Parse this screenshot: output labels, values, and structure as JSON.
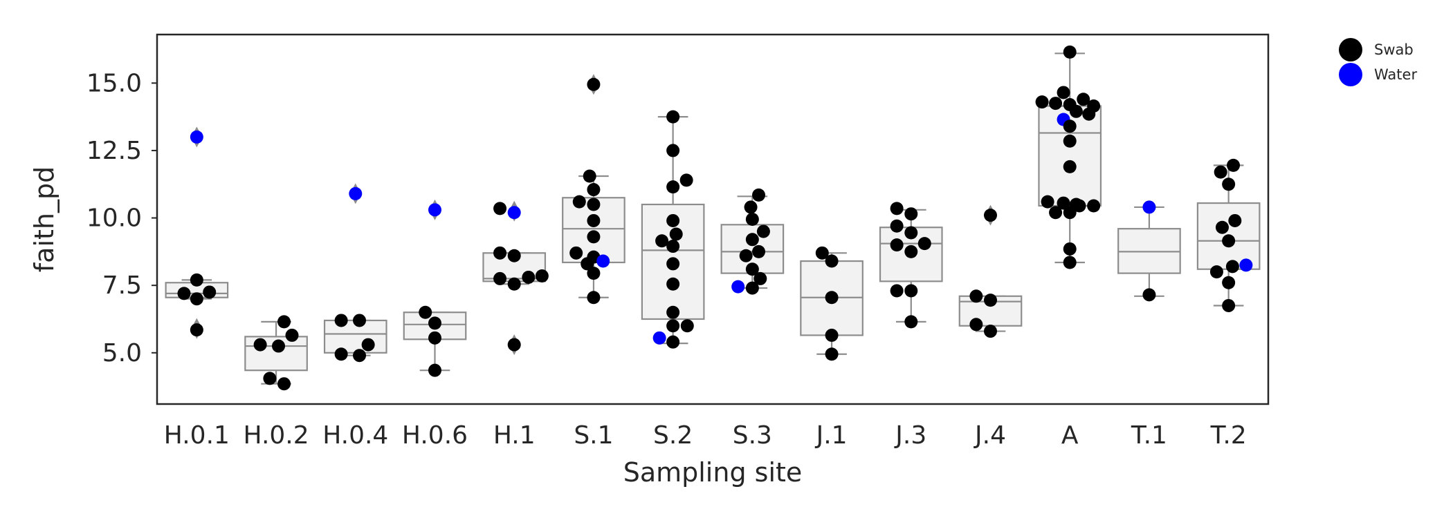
{
  "chart_data": {
    "type": "box-swarm",
    "xlabel": "Sampling site",
    "ylabel": "faith_pd",
    "ylim": [
      3.1,
      16.8
    ],
    "yticks": [
      5.0,
      7.5,
      10.0,
      12.5,
      15.0
    ],
    "ytick_labels": [
      "5.0",
      "7.5",
      "10.0",
      "12.5",
      "15.0"
    ],
    "grid": false,
    "legend_position": "outside-top-right",
    "categories": [
      "H.0.1",
      "H.0.2",
      "H.0.4",
      "H.0.6",
      "H.1",
      "S.1",
      "S.2",
      "S.3",
      "J.1",
      "J.3",
      "J.4",
      "A",
      "T.1",
      "T.2"
    ],
    "series": [
      {
        "name": "Swab",
        "color": "#000000"
      },
      {
        "name": "Water",
        "color": "#0000ff"
      }
    ],
    "box_color": "#f2f2f2",
    "box_edge_color": "#8c8c8c",
    "boxes": [
      {
        "q1": 7.05,
        "median": 7.2,
        "q3": 7.6,
        "whisker_low": 7.0,
        "whisker_high": 7.7,
        "outliers": [
          5.9,
          13.0
        ]
      },
      {
        "q1": 4.35,
        "median": 5.25,
        "q3": 5.6,
        "whisker_low": 3.85,
        "whisker_high": 6.15,
        "outliers": []
      },
      {
        "q1": 5.0,
        "median": 5.7,
        "q3": 6.2,
        "whisker_low": 4.9,
        "whisker_high": 6.2,
        "outliers": [
          10.9
        ]
      },
      {
        "q1": 5.5,
        "median": 6.05,
        "q3": 6.5,
        "whisker_low": 4.35,
        "whisker_high": 6.5,
        "outliers": [
          10.3
        ]
      },
      {
        "q1": 7.65,
        "median": 7.75,
        "q3": 8.7,
        "whisker_low": 7.55,
        "whisker_high": 8.7,
        "outliers": [
          5.3,
          10.25
        ]
      },
      {
        "q1": 8.35,
        "median": 9.6,
        "q3": 10.75,
        "whisker_low": 7.05,
        "whisker_high": 11.55,
        "outliers": [
          14.95
        ]
      },
      {
        "q1": 6.25,
        "median": 8.8,
        "q3": 10.5,
        "whisker_low": 5.35,
        "whisker_high": 13.75,
        "outliers": []
      },
      {
        "q1": 7.95,
        "median": 8.75,
        "q3": 9.75,
        "whisker_low": 7.4,
        "whisker_high": 10.8,
        "outliers": []
      },
      {
        "q1": 5.65,
        "median": 7.05,
        "q3": 8.4,
        "whisker_low": 4.95,
        "whisker_high": 8.7,
        "outliers": []
      },
      {
        "q1": 7.65,
        "median": 9.05,
        "q3": 9.65,
        "whisker_low": 6.15,
        "whisker_high": 10.3,
        "outliers": []
      },
      {
        "q1": 6.0,
        "median": 6.9,
        "q3": 7.1,
        "whisker_low": 5.8,
        "whisker_high": 7.1,
        "outliers": [
          10.1
        ]
      },
      {
        "q1": 10.45,
        "median": 13.15,
        "q3": 14.15,
        "whisker_low": 8.35,
        "whisker_high": 16.1,
        "outliers": []
      },
      {
        "q1": 7.95,
        "median": 8.75,
        "q3": 9.6,
        "whisker_low": 7.1,
        "whisker_high": 10.4,
        "outliers": []
      },
      {
        "q1": 8.1,
        "median": 9.15,
        "q3": 10.55,
        "whisker_low": 6.75,
        "whisker_high": 11.95,
        "outliers": []
      }
    ],
    "points": [
      {
        "site": "H.0.1",
        "series": "Water",
        "y": 13.0,
        "dx": 0.0
      },
      {
        "site": "H.0.1",
        "series": "Swab",
        "y": 7.7,
        "dx": 0.0
      },
      {
        "site": "H.0.1",
        "series": "Swab",
        "y": 7.2,
        "dx": -0.16
      },
      {
        "site": "H.0.1",
        "series": "Swab",
        "y": 7.25,
        "dx": 0.16
      },
      {
        "site": "H.0.1",
        "series": "Swab",
        "y": 7.0,
        "dx": 0.0
      },
      {
        "site": "H.0.1",
        "series": "Swab",
        "y": 5.85,
        "dx": 0.0
      },
      {
        "site": "H.0.2",
        "series": "Swab",
        "y": 6.15,
        "dx": 0.1
      },
      {
        "site": "H.0.2",
        "series": "Swab",
        "y": 5.65,
        "dx": 0.2
      },
      {
        "site": "H.0.2",
        "series": "Swab",
        "y": 5.3,
        "dx": -0.2
      },
      {
        "site": "H.0.2",
        "series": "Swab",
        "y": 5.25,
        "dx": 0.03
      },
      {
        "site": "H.0.2",
        "series": "Swab",
        "y": 4.05,
        "dx": -0.08
      },
      {
        "site": "H.0.2",
        "series": "Swab",
        "y": 3.85,
        "dx": 0.1
      },
      {
        "site": "H.0.4",
        "series": "Water",
        "y": 10.9,
        "dx": 0.0
      },
      {
        "site": "H.0.4",
        "series": "Swab",
        "y": 6.2,
        "dx": -0.18
      },
      {
        "site": "H.0.4",
        "series": "Swab",
        "y": 6.2,
        "dx": 0.05
      },
      {
        "site": "H.0.4",
        "series": "Swab",
        "y": 5.3,
        "dx": 0.16
      },
      {
        "site": "H.0.4",
        "series": "Swab",
        "y": 4.95,
        "dx": -0.18
      },
      {
        "site": "H.0.4",
        "series": "Swab",
        "y": 4.9,
        "dx": 0.05
      },
      {
        "site": "H.0.6",
        "series": "Water",
        "y": 10.3,
        "dx": 0.0
      },
      {
        "site": "H.0.6",
        "series": "Swab",
        "y": 6.5,
        "dx": -0.12
      },
      {
        "site": "H.0.6",
        "series": "Swab",
        "y": 6.1,
        "dx": 0.0
      },
      {
        "site": "H.0.6",
        "series": "Swab",
        "y": 5.55,
        "dx": 0.0
      },
      {
        "site": "H.0.6",
        "series": "Swab",
        "y": 4.35,
        "dx": 0.0
      },
      {
        "site": "H.1",
        "series": "Swab",
        "y": 10.35,
        "dx": -0.18
      },
      {
        "site": "H.1",
        "series": "Water",
        "y": 10.2,
        "dx": 0.0
      },
      {
        "site": "H.1",
        "series": "Swab",
        "y": 8.7,
        "dx": -0.18
      },
      {
        "site": "H.1",
        "series": "Swab",
        "y": 8.6,
        "dx": 0.0
      },
      {
        "site": "H.1",
        "series": "Swab",
        "y": 7.85,
        "dx": 0.35
      },
      {
        "site": "H.1",
        "series": "Swab",
        "y": 7.8,
        "dx": 0.18
      },
      {
        "site": "H.1",
        "series": "Swab",
        "y": 7.75,
        "dx": -0.18
      },
      {
        "site": "H.1",
        "series": "Swab",
        "y": 7.55,
        "dx": 0.0
      },
      {
        "site": "H.1",
        "series": "Swab",
        "y": 5.3,
        "dx": 0.0
      },
      {
        "site": "S.1",
        "series": "Swab",
        "y": 14.95,
        "dx": 0.0
      },
      {
        "site": "S.1",
        "series": "Swab",
        "y": 11.55,
        "dx": -0.05
      },
      {
        "site": "S.1",
        "series": "Swab",
        "y": 11.05,
        "dx": 0.0
      },
      {
        "site": "S.1",
        "series": "Swab",
        "y": 10.6,
        "dx": -0.18
      },
      {
        "site": "S.1",
        "series": "Swab",
        "y": 10.5,
        "dx": 0.0
      },
      {
        "site": "S.1",
        "series": "Swab",
        "y": 9.9,
        "dx": 0.0
      },
      {
        "site": "S.1",
        "series": "Swab",
        "y": 9.3,
        "dx": 0.0
      },
      {
        "site": "S.1",
        "series": "Swab",
        "y": 8.7,
        "dx": -0.22
      },
      {
        "site": "S.1",
        "series": "Swab",
        "y": 8.55,
        "dx": 0.0
      },
      {
        "site": "S.1",
        "series": "Water",
        "y": 8.4,
        "dx": 0.12
      },
      {
        "site": "S.1",
        "series": "Swab",
        "y": 8.3,
        "dx": -0.08
      },
      {
        "site": "S.1",
        "series": "Swab",
        "y": 7.95,
        "dx": 0.0
      },
      {
        "site": "S.1",
        "series": "Swab",
        "y": 7.05,
        "dx": 0.0
      },
      {
        "site": "S.2",
        "series": "Swab",
        "y": 13.75,
        "dx": 0.0
      },
      {
        "site": "S.2",
        "series": "Swab",
        "y": 12.5,
        "dx": 0.0
      },
      {
        "site": "S.2",
        "series": "Swab",
        "y": 11.4,
        "dx": 0.17
      },
      {
        "site": "S.2",
        "series": "Swab",
        "y": 11.15,
        "dx": 0.0
      },
      {
        "site": "S.2",
        "series": "Swab",
        "y": 9.9,
        "dx": 0.0
      },
      {
        "site": "S.2",
        "series": "Swab",
        "y": 9.4,
        "dx": 0.04
      },
      {
        "site": "S.2",
        "series": "Swab",
        "y": 9.15,
        "dx": -0.14
      },
      {
        "site": "S.2",
        "series": "Swab",
        "y": 8.95,
        "dx": 0.0
      },
      {
        "site": "S.2",
        "series": "Swab",
        "y": 8.3,
        "dx": 0.0
      },
      {
        "site": "S.2",
        "series": "Swab",
        "y": 7.55,
        "dx": 0.0
      },
      {
        "site": "S.2",
        "series": "Swab",
        "y": 6.5,
        "dx": 0.0
      },
      {
        "site": "S.2",
        "series": "Swab",
        "y": 6.0,
        "dx": 0.0
      },
      {
        "site": "S.2",
        "series": "Swab",
        "y": 6.0,
        "dx": 0.18
      },
      {
        "site": "S.2",
        "series": "Water",
        "y": 5.55,
        "dx": -0.17
      },
      {
        "site": "S.2",
        "series": "Swab",
        "y": 5.4,
        "dx": 0.0
      },
      {
        "site": "S.3",
        "series": "Swab",
        "y": 10.85,
        "dx": 0.08
      },
      {
        "site": "S.3",
        "series": "Swab",
        "y": 10.4,
        "dx": -0.02
      },
      {
        "site": "S.3",
        "series": "Swab",
        "y": 9.95,
        "dx": 0.0
      },
      {
        "site": "S.3",
        "series": "Swab",
        "y": 9.5,
        "dx": 0.14
      },
      {
        "site": "S.3",
        "series": "Swab",
        "y": 9.2,
        "dx": 0.0
      },
      {
        "site": "S.3",
        "series": "Swab",
        "y": 8.75,
        "dx": 0.08
      },
      {
        "site": "S.3",
        "series": "Swab",
        "y": 8.6,
        "dx": -0.08
      },
      {
        "site": "S.3",
        "series": "Swab",
        "y": 8.1,
        "dx": 0.0
      },
      {
        "site": "S.3",
        "series": "Swab",
        "y": 7.75,
        "dx": 0.1
      },
      {
        "site": "S.3",
        "series": "Water",
        "y": 7.45,
        "dx": -0.18
      },
      {
        "site": "S.3",
        "series": "Swab",
        "y": 7.4,
        "dx": 0.0
      },
      {
        "site": "J.1",
        "series": "Swab",
        "y": 8.7,
        "dx": -0.12
      },
      {
        "site": "J.1",
        "series": "Swab",
        "y": 8.4,
        "dx": 0.0
      },
      {
        "site": "J.1",
        "series": "Swab",
        "y": 7.05,
        "dx": 0.0
      },
      {
        "site": "J.1",
        "series": "Swab",
        "y": 5.65,
        "dx": 0.0
      },
      {
        "site": "J.1",
        "series": "Swab",
        "y": 4.95,
        "dx": 0.0
      },
      {
        "site": "J.3",
        "series": "Swab",
        "y": 10.35,
        "dx": -0.18
      },
      {
        "site": "J.3",
        "series": "Swab",
        "y": 10.15,
        "dx": 0.0
      },
      {
        "site": "J.3",
        "series": "Swab",
        "y": 9.7,
        "dx": -0.18
      },
      {
        "site": "J.3",
        "series": "Swab",
        "y": 9.45,
        "dx": 0.0
      },
      {
        "site": "J.3",
        "series": "Swab",
        "y": 9.05,
        "dx": 0.17
      },
      {
        "site": "J.3",
        "series": "Swab",
        "y": 9.0,
        "dx": -0.18
      },
      {
        "site": "J.3",
        "series": "Swab",
        "y": 8.75,
        "dx": 0.0
      },
      {
        "site": "J.3",
        "series": "Swab",
        "y": 7.3,
        "dx": -0.18
      },
      {
        "site": "J.3",
        "series": "Swab",
        "y": 7.3,
        "dx": 0.0
      },
      {
        "site": "J.3",
        "series": "Swab",
        "y": 6.15,
        "dx": 0.0
      },
      {
        "site": "J.4",
        "series": "Swab",
        "y": 10.1,
        "dx": 0.0
      },
      {
        "site": "J.4",
        "series": "Swab",
        "y": 7.1,
        "dx": -0.18
      },
      {
        "site": "J.4",
        "series": "Swab",
        "y": 6.95,
        "dx": 0.0
      },
      {
        "site": "J.4",
        "series": "Swab",
        "y": 6.05,
        "dx": -0.18
      },
      {
        "site": "J.4",
        "series": "Swab",
        "y": 5.8,
        "dx": 0.0
      },
      {
        "site": "A",
        "series": "Swab",
        "y": 16.15,
        "dx": 0.0
      },
      {
        "site": "A",
        "series": "Swab",
        "y": 14.65,
        "dx": -0.08
      },
      {
        "site": "A",
        "series": "Swab",
        "y": 14.4,
        "dx": 0.17
      },
      {
        "site": "A",
        "series": "Swab",
        "y": 14.3,
        "dx": -0.35
      },
      {
        "site": "A",
        "series": "Swab",
        "y": 14.25,
        "dx": -0.18
      },
      {
        "site": "A",
        "series": "Swab",
        "y": 14.2,
        "dx": 0.0
      },
      {
        "site": "A",
        "series": "Swab",
        "y": 14.15,
        "dx": 0.3
      },
      {
        "site": "A",
        "series": "Swab",
        "y": 13.95,
        "dx": 0.08
      },
      {
        "site": "A",
        "series": "Swab",
        "y": 13.85,
        "dx": 0.24
      },
      {
        "site": "A",
        "series": "Water",
        "y": 13.65,
        "dx": -0.08
      },
      {
        "site": "A",
        "series": "Swab",
        "y": 13.4,
        "dx": 0.0
      },
      {
        "site": "A",
        "series": "Swab",
        "y": 12.85,
        "dx": 0.0
      },
      {
        "site": "A",
        "series": "Swab",
        "y": 11.9,
        "dx": 0.0
      },
      {
        "site": "A",
        "series": "Swab",
        "y": 10.6,
        "dx": -0.28
      },
      {
        "site": "A",
        "series": "Swab",
        "y": 10.55,
        "dx": -0.08
      },
      {
        "site": "A",
        "series": "Swab",
        "y": 10.5,
        "dx": 0.08
      },
      {
        "site": "A",
        "series": "Swab",
        "y": 10.45,
        "dx": 0.3
      },
      {
        "site": "A",
        "series": "Swab",
        "y": 10.45,
        "dx": 0.12
      },
      {
        "site": "A",
        "series": "Swab",
        "y": 10.2,
        "dx": -0.18
      },
      {
        "site": "A",
        "series": "Swab",
        "y": 10.2,
        "dx": 0.0
      },
      {
        "site": "A",
        "series": "Swab",
        "y": 8.85,
        "dx": 0.0
      },
      {
        "site": "A",
        "series": "Swab",
        "y": 8.35,
        "dx": 0.0
      },
      {
        "site": "T.1",
        "series": "Water",
        "y": 10.4,
        "dx": 0.0
      },
      {
        "site": "T.1",
        "series": "Swab",
        "y": 7.15,
        "dx": 0.0
      },
      {
        "site": "T.2",
        "series": "Swab",
        "y": 11.95,
        "dx": 0.06
      },
      {
        "site": "T.2",
        "series": "Swab",
        "y": 11.7,
        "dx": -0.1
      },
      {
        "site": "T.2",
        "series": "Swab",
        "y": 11.25,
        "dx": 0.0
      },
      {
        "site": "T.2",
        "series": "Swab",
        "y": 9.9,
        "dx": 0.08
      },
      {
        "site": "T.2",
        "series": "Swab",
        "y": 9.65,
        "dx": -0.08
      },
      {
        "site": "T.2",
        "series": "Swab",
        "y": 9.15,
        "dx": 0.0
      },
      {
        "site": "T.2",
        "series": "Water",
        "y": 8.25,
        "dx": 0.22
      },
      {
        "site": "T.2",
        "series": "Swab",
        "y": 8.2,
        "dx": 0.05
      },
      {
        "site": "T.2",
        "series": "Swab",
        "y": 8.0,
        "dx": -0.15
      },
      {
        "site": "T.2",
        "series": "Swab",
        "y": 7.6,
        "dx": 0.0
      },
      {
        "site": "T.2",
        "series": "Swab",
        "y": 6.75,
        "dx": 0.0
      }
    ]
  }
}
